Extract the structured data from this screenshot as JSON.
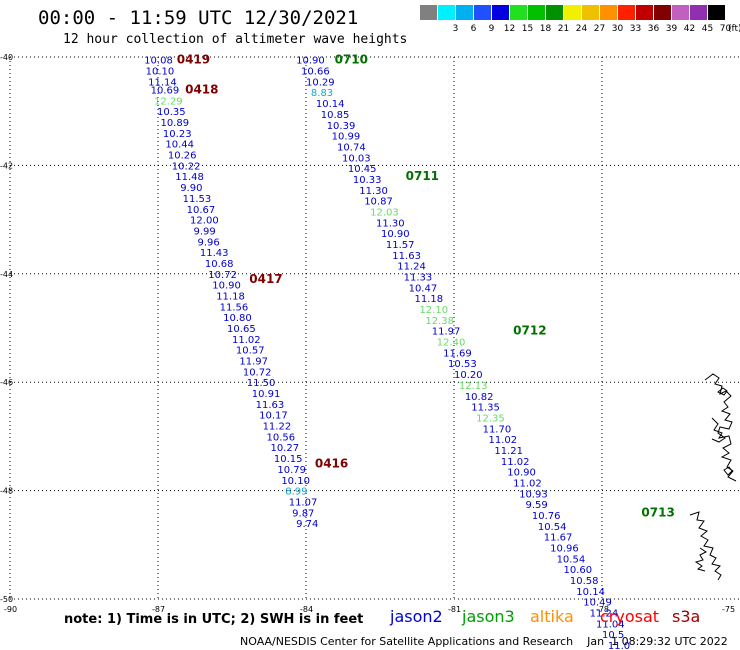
{
  "header": {
    "title": "00:00 - 11:59 UTC 12/30/2021",
    "subtitle": "12 hour collection of altimeter wave heights"
  },
  "color_scale": {
    "unit": "(ft)",
    "bins": [
      {
        "label": "",
        "color": "#808080"
      },
      {
        "label": "3",
        "color": "#00f0ff"
      },
      {
        "label": "6",
        "color": "#00b0f0"
      },
      {
        "label": "9",
        "color": "#2050ff"
      },
      {
        "label": "12",
        "color": "#0000e0"
      },
      {
        "label": "15",
        "color": "#20e020"
      },
      {
        "label": "18",
        "color": "#00c000"
      },
      {
        "label": "21",
        "color": "#009000"
      },
      {
        "label": "24",
        "color": "#f0f000"
      },
      {
        "label": "27",
        "color": "#f0c000"
      },
      {
        "label": "30",
        "color": "#ff9000"
      },
      {
        "label": "33",
        "color": "#ff2000"
      },
      {
        "label": "36",
        "color": "#c00000"
      },
      {
        "label": "39",
        "color": "#800000"
      },
      {
        "label": "42",
        "color": "#c060c0"
      },
      {
        "label": "45",
        "color": "#9030b0"
      },
      {
        "label": "70",
        "color": "#000000"
      }
    ]
  },
  "axes": {
    "lat_ticks": [
      -40,
      -42,
      -44,
      -46,
      -48,
      -50
    ],
    "lon_ticks": [
      -90,
      -87,
      -84,
      -81,
      -78,
      -75
    ],
    "lat_labels": [
      "-40",
      "-42",
      "-44",
      "-46",
      "-48",
      "-50"
    ],
    "lon_labels": [
      "-90",
      "-87",
      "-84",
      "-81",
      "-78",
      "-75"
    ]
  },
  "colors": {
    "jason2": "#0000d0",
    "jason3": "#00a000",
    "altika": "#ff9000",
    "cryosat": "#ff0000",
    "s3a": "#a00000",
    "light_green": "#66dd66",
    "cyan": "#00b0e0",
    "time_dark": "#800000",
    "time_green": "#007000"
  },
  "tracks": [
    {
      "time_labels": [
        {
          "text": "0419",
          "lon": -86.62,
          "lat": -40.05,
          "color": "time_dark"
        },
        {
          "text": "0418",
          "lon": -86.45,
          "lat": -40.6,
          "color": "time_dark"
        },
        {
          "text": "0417",
          "lon": -85.15,
          "lat": -44.1,
          "color": "time_dark"
        },
        {
          "text": "0416",
          "lon": -83.82,
          "lat": -47.5,
          "color": "time_dark"
        }
      ],
      "points": [
        {
          "v": "10.08",
          "lon": -87.28,
          "lat": -40.05,
          "c": "jason2"
        },
        {
          "v": "10.10",
          "lon": -87.25,
          "lat": -40.25,
          "c": "jason2"
        },
        {
          "v": "11.14",
          "lon": -87.2,
          "lat": -40.45,
          "c": "jason2"
        },
        {
          "v": "10.69",
          "lon": -87.15,
          "lat": -40.6,
          "c": "jason2"
        },
        {
          "v": "12.29",
          "lon": -87.08,
          "lat": -40.8,
          "c": "light_green"
        },
        {
          "v": "10.35",
          "lon": -87.02,
          "lat": -41.0,
          "c": "jason2"
        },
        {
          "v": "10.89",
          "lon": -86.95,
          "lat": -41.2,
          "c": "jason2"
        },
        {
          "v": "10.23",
          "lon": -86.9,
          "lat": -41.4,
          "c": "jason2"
        },
        {
          "v": "10.44",
          "lon": -86.85,
          "lat": -41.6,
          "c": "jason2"
        },
        {
          "v": "10.26",
          "lon": -86.8,
          "lat": -41.8,
          "c": "jason2"
        },
        {
          "v": "10.22",
          "lon": -86.72,
          "lat": -42.0,
          "c": "jason2"
        },
        {
          "v": "11.48",
          "lon": -86.65,
          "lat": -42.2,
          "c": "jason2"
        },
        {
          "v": "9.90",
          "lon": -86.55,
          "lat": -42.4,
          "c": "jason2"
        },
        {
          "v": "11.53",
          "lon": -86.5,
          "lat": -42.6,
          "c": "jason2"
        },
        {
          "v": "10.67",
          "lon": -86.42,
          "lat": -42.8,
          "c": "jason2"
        },
        {
          "v": "12.00",
          "lon": -86.35,
          "lat": -43.0,
          "c": "jason2"
        },
        {
          "v": "9.99",
          "lon": -86.28,
          "lat": -43.2,
          "c": "jason2"
        },
        {
          "v": "9.96",
          "lon": -86.2,
          "lat": -43.4,
          "c": "jason2"
        },
        {
          "v": "11.43",
          "lon": -86.15,
          "lat": -43.6,
          "c": "jason2"
        },
        {
          "v": "10.68",
          "lon": -86.05,
          "lat": -43.8,
          "c": "jason2"
        },
        {
          "v": "10.72",
          "lon": -85.98,
          "lat": -44.0,
          "c": "jason2"
        },
        {
          "v": "10.90",
          "lon": -85.9,
          "lat": -44.2,
          "c": "jason2"
        },
        {
          "v": "11.18",
          "lon": -85.82,
          "lat": -44.4,
          "c": "jason2"
        },
        {
          "v": "11.56",
          "lon": -85.75,
          "lat": -44.6,
          "c": "jason2"
        },
        {
          "v": "10.80",
          "lon": -85.68,
          "lat": -44.8,
          "c": "jason2"
        },
        {
          "v": "10.65",
          "lon": -85.6,
          "lat": -45.0,
          "c": "jason2"
        },
        {
          "v": "11.02",
          "lon": -85.5,
          "lat": -45.2,
          "c": "jason2"
        },
        {
          "v": "10.57",
          "lon": -85.42,
          "lat": -45.4,
          "c": "jason2"
        },
        {
          "v": "11.97",
          "lon": -85.35,
          "lat": -45.6,
          "c": "jason2"
        },
        {
          "v": "10.72",
          "lon": -85.28,
          "lat": -45.8,
          "c": "jason2"
        },
        {
          "v": "11.50",
          "lon": -85.2,
          "lat": -46.0,
          "c": "jason2"
        },
        {
          "v": "10.91",
          "lon": -85.1,
          "lat": -46.2,
          "c": "jason2"
        },
        {
          "v": "11.63",
          "lon": -85.02,
          "lat": -46.4,
          "c": "jason2"
        },
        {
          "v": "10.17",
          "lon": -84.95,
          "lat": -46.6,
          "c": "jason2"
        },
        {
          "v": "11.22",
          "lon": -84.88,
          "lat": -46.8,
          "c": "jason2"
        },
        {
          "v": "10.56",
          "lon": -84.8,
          "lat": -47.0,
          "c": "jason2"
        },
        {
          "v": "10.27",
          "lon": -84.72,
          "lat": -47.2,
          "c": "jason2"
        },
        {
          "v": "10.15",
          "lon": -84.65,
          "lat": -47.4,
          "c": "jason2"
        },
        {
          "v": "10.79",
          "lon": -84.58,
          "lat": -47.6,
          "c": "jason2"
        },
        {
          "v": "10.10",
          "lon": -84.5,
          "lat": -47.8,
          "c": "jason2"
        },
        {
          "v": "8.99",
          "lon": -84.42,
          "lat": -48.0,
          "c": "cyan"
        },
        {
          "v": "11.07",
          "lon": -84.35,
          "lat": -48.2,
          "c": "jason2"
        },
        {
          "v": "9.87",
          "lon": -84.28,
          "lat": -48.4,
          "c": "jason2"
        },
        {
          "v": "9.74",
          "lon": -84.2,
          "lat": -48.6,
          "c": "jason2"
        }
      ]
    }
  ],
  "note": "note:  1) Time is in UTC; 2) SWH is in feet",
  "satellites": [
    {
      "name": "jason2",
      "color": "jason2"
    },
    {
      "name": "jason3",
      "color": "jason3"
    },
    {
      "name": "altika",
      "color": "altika"
    },
    {
      "name": "cryosat",
      "color": "cryosat"
    },
    {
      "name": "s3a",
      "color": "s3a"
    }
  ],
  "footer": "NOAA/NESDIS Center for Satellite Applications and Research    Jan  1 08:29:32 UTC 2022",
  "track2_times": [
    {
      "text": "0710",
      "lon": -83.42,
      "lat": -40.05,
      "color": "time_green"
    },
    {
      "text": "0711",
      "lon": -81.98,
      "lat": -42.2,
      "color": "time_green"
    },
    {
      "text": "0712",
      "lon": -79.8,
      "lat": -45.05,
      "color": "time_green"
    },
    {
      "text": "0713",
      "lon": -77.2,
      "lat": -48.4,
      "color": "time_green"
    }
  ],
  "track2_points": [
    {
      "v": "10.90",
      "lon": -84.2,
      "lat": -40.05,
      "c": "jason2"
    },
    {
      "v": "10.66",
      "lon": -84.1,
      "lat": -40.25,
      "c": "jason2"
    },
    {
      "v": "10.29",
      "lon": -84.0,
      "lat": -40.45,
      "c": "jason2"
    },
    {
      "v": "8.83",
      "lon": -83.9,
      "lat": -40.65,
      "c": "cyan"
    },
    {
      "v": "10.14",
      "lon": -83.8,
      "lat": -40.85,
      "c": "jason2"
    },
    {
      "v": "10.85",
      "lon": -83.7,
      "lat": -41.05,
      "c": "jason2"
    },
    {
      "v": "10.39",
      "lon": -83.58,
      "lat": -41.25,
      "c": "jason2"
    },
    {
      "v": "10.99",
      "lon": -83.48,
      "lat": -41.45,
      "c": "jason2"
    },
    {
      "v": "10.74",
      "lon": -83.37,
      "lat": -41.65,
      "c": "jason2"
    },
    {
      "v": "10.03",
      "lon": -83.27,
      "lat": -41.85,
      "c": "jason2"
    },
    {
      "v": "10.45",
      "lon": -83.15,
      "lat": -42.05,
      "c": "jason2"
    },
    {
      "v": "10.33",
      "lon": -83.05,
      "lat": -42.25,
      "c": "jason2"
    },
    {
      "v": "11.30",
      "lon": -82.92,
      "lat": -42.45,
      "c": "jason2"
    },
    {
      "v": "10.87",
      "lon": -82.82,
      "lat": -42.65,
      "c": "jason2"
    },
    {
      "v": "12.03",
      "lon": -82.7,
      "lat": -42.85,
      "c": "light_green"
    },
    {
      "v": "11.30",
      "lon": -82.58,
      "lat": -43.05,
      "c": "jason2"
    },
    {
      "v": "10.90",
      "lon": -82.48,
      "lat": -43.25,
      "c": "jason2"
    },
    {
      "v": "11.57",
      "lon": -82.38,
      "lat": -43.45,
      "c": "jason2"
    },
    {
      "v": "11.63",
      "lon": -82.25,
      "lat": -43.65,
      "c": "jason2"
    },
    {
      "v": "11.24",
      "lon": -82.15,
      "lat": -43.85,
      "c": "jason2"
    },
    {
      "v": "11.33",
      "lon": -82.02,
      "lat": -44.05,
      "c": "jason2"
    },
    {
      "v": "10.47",
      "lon": -81.92,
      "lat": -44.25,
      "c": "jason2"
    },
    {
      "v": "11.18",
      "lon": -81.8,
      "lat": -44.45,
      "c": "jason2"
    },
    {
      "v": "12.10",
      "lon": -81.7,
      "lat": -44.65,
      "c": "light_green"
    },
    {
      "v": "12.38",
      "lon": -81.58,
      "lat": -44.85,
      "c": "light_green"
    },
    {
      "v": "11.97",
      "lon": -81.45,
      "lat": -45.05,
      "c": "jason2"
    },
    {
      "v": "12.40",
      "lon": -81.35,
      "lat": -45.25,
      "c": "light_green"
    },
    {
      "v": "11.69",
      "lon": -81.22,
      "lat": -45.45,
      "c": "jason2"
    },
    {
      "v": "10.53",
      "lon": -81.12,
      "lat": -45.65,
      "c": "jason2"
    },
    {
      "v": "10.20",
      "lon": -81.0,
      "lat": -45.85,
      "c": "jason2"
    },
    {
      "v": "12.13",
      "lon": -80.9,
      "lat": -46.05,
      "c": "light_green"
    },
    {
      "v": "10.82",
      "lon": -80.78,
      "lat": -46.25,
      "c": "jason2"
    },
    {
      "v": "11.35",
      "lon": -80.65,
      "lat": -46.45,
      "c": "jason2"
    },
    {
      "v": "12.35",
      "lon": -80.55,
      "lat": -46.65,
      "c": "light_green"
    },
    {
      "v": "11.70",
      "lon": -80.42,
      "lat": -46.85,
      "c": "jason2"
    },
    {
      "v": "11.02",
      "lon": -80.3,
      "lat": -47.05,
      "c": "jason2"
    },
    {
      "v": "11.21",
      "lon": -80.18,
      "lat": -47.25,
      "c": "jason2"
    },
    {
      "v": "11.02",
      "lon": -80.05,
      "lat": -47.45,
      "c": "jason2"
    },
    {
      "v": "10.90",
      "lon": -79.92,
      "lat": -47.65,
      "c": "jason2"
    },
    {
      "v": "11.02",
      "lon": -79.8,
      "lat": -47.85,
      "c": "jason2"
    },
    {
      "v": "10.93",
      "lon": -79.68,
      "lat": -48.05,
      "c": "jason2"
    },
    {
      "v": "9.59",
      "lon": -79.55,
      "lat": -48.25,
      "c": "jason2"
    },
    {
      "v": "10.76",
      "lon": -79.42,
      "lat": -48.45,
      "c": "jason2"
    },
    {
      "v": "10.54",
      "lon": -79.3,
      "lat": -48.65,
      "c": "jason2"
    },
    {
      "v": "11.67",
      "lon": -79.18,
      "lat": -48.85,
      "c": "jason2"
    },
    {
      "v": "10.96",
      "lon": -79.05,
      "lat": -49.05,
      "c": "jason2"
    },
    {
      "v": "10.54",
      "lon": -78.92,
      "lat": -49.25,
      "c": "jason2"
    },
    {
      "v": "10.60",
      "lon": -78.78,
      "lat": -49.45,
      "c": "jason2"
    },
    {
      "v": "10.58",
      "lon": -78.65,
      "lat": -49.65,
      "c": "jason2"
    },
    {
      "v": "10.14",
      "lon": -78.52,
      "lat": -49.85,
      "c": "jason2"
    },
    {
      "v": "10.49",
      "lon": -78.38,
      "lat": -50.05,
      "c": "jason2"
    },
    {
      "v": "11.24",
      "lon": -78.25,
      "lat": -50.25,
      "c": "jason2"
    },
    {
      "v": "11.04",
      "lon": -78.12,
      "lat": -50.45,
      "c": "jason2"
    },
    {
      "v": "10.5",
      "lon": -78.0,
      "lat": -50.65,
      "c": "jason2"
    },
    {
      "v": "11.0",
      "lon": -77.88,
      "lat": -50.85,
      "c": "jason2"
    }
  ]
}
